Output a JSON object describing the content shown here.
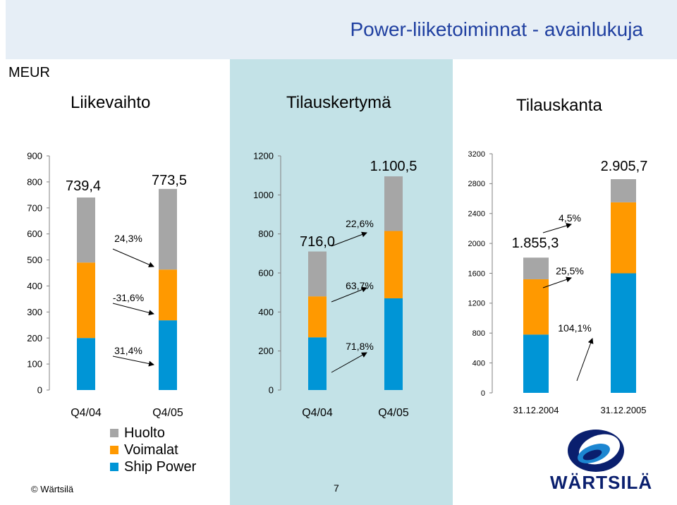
{
  "header": {
    "title": "Power-liiketoiminnat - avainlukuja",
    "unit": "MEUR"
  },
  "colors": {
    "Huolto": "#a6a6a6",
    "Voimalat": "#ff9900",
    "Ship Power": "#0095d6",
    "panel": "#c3e2e7"
  },
  "legend": [
    "Huolto",
    "Voimalat",
    "Ship Power"
  ],
  "footer": {
    "copyright": "© Wärtsilä",
    "page": "7"
  },
  "logo": {
    "text": "WÄRTSILÄ"
  },
  "chart_data": [
    {
      "type": "bar",
      "stacked": true,
      "title": "Liikevaihto",
      "categories": [
        "Q4/04",
        "Q4/05"
      ],
      "ylim": [
        0,
        900
      ],
      "yticks": [
        "0",
        "100",
        "200",
        "300",
        "400",
        "500",
        "600",
        "700",
        "800",
        "900"
      ],
      "series": [
        {
          "name": "Ship Power",
          "values": [
            200,
            268
          ]
        },
        {
          "name": "Voimalat",
          "values": [
            290,
            195
          ]
        },
        {
          "name": "Huolto",
          "values": [
            250,
            310
          ]
        }
      ],
      "totals": [
        "739,4",
        "773,5"
      ],
      "change_labels": [
        "24,3%",
        "-31,6%",
        "31,4%"
      ]
    },
    {
      "type": "bar",
      "stacked": true,
      "title": "Tilauskertymä",
      "categories": [
        "Q4/04",
        "Q4/05"
      ],
      "ylim": [
        0,
        1200
      ],
      "yticks": [
        "0",
        "200",
        "400",
        "600",
        "800",
        "1000",
        "1200"
      ],
      "series": [
        {
          "name": "Ship Power",
          "values": [
            270,
            470
          ]
        },
        {
          "name": "Voimalat",
          "values": [
            210,
            345
          ]
        },
        {
          "name": "Huolto",
          "values": [
            230,
            280
          ]
        }
      ],
      "totals": [
        "716,0",
        "1.100,5"
      ],
      "change_labels": [
        "22,6%",
        "63,7%",
        "71,8%"
      ]
    },
    {
      "type": "bar",
      "stacked": true,
      "title": "Tilauskanta",
      "categories": [
        "31.12.2004",
        "31.12.2005"
      ],
      "ylim": [
        0,
        3200
      ],
      "yticks": [
        "0",
        "400",
        "800",
        "1200",
        "1600",
        "2000",
        "2400",
        "2800",
        "3200"
      ],
      "series": [
        {
          "name": "Ship Power",
          "values": [
            780,
            1600
          ]
        },
        {
          "name": "Voimalat",
          "values": [
            740,
            950
          ]
        },
        {
          "name": "Huolto",
          "values": [
            290,
            310
          ]
        }
      ],
      "totals": [
        "1.855,3",
        "2.905,7"
      ],
      "change_labels": [
        "4,5%",
        "25,5%",
        "104,1%"
      ]
    }
  ]
}
